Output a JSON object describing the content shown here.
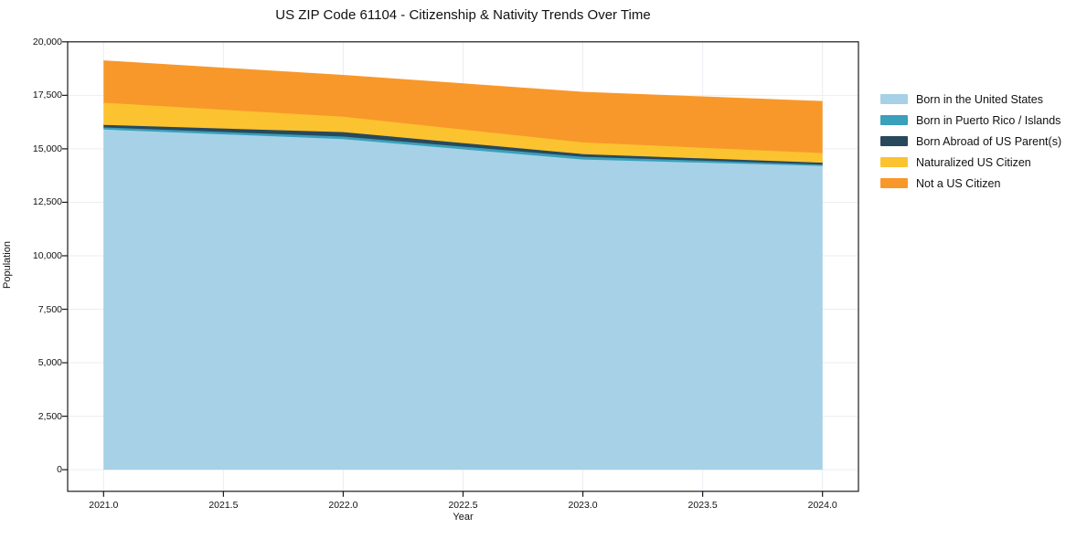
{
  "chart_data": {
    "type": "area",
    "stacked": true,
    "title": "US ZIP Code 61104 - Citizenship & Nativity Trends Over Time",
    "xlabel": "Year",
    "ylabel": "Population",
    "x": [
      2021,
      2022,
      2023,
      2024
    ],
    "series": [
      {
        "name": "Born in the United States",
        "color": "#a6d1e6",
        "values": [
          15900,
          15450,
          14500,
          14200
        ]
      },
      {
        "name": "Born in Puerto Rico / Islands",
        "color": "#3aa0bb",
        "values": [
          100,
          120,
          130,
          60
        ]
      },
      {
        "name": "Born Abroad of US Parent(s)",
        "color": "#28495c",
        "values": [
          120,
          210,
          120,
          90
        ]
      },
      {
        "name": "Naturalized US Citizen",
        "color": "#fcc330",
        "values": [
          1030,
          720,
          550,
          450
        ]
      },
      {
        "name": "Not a US Citizen",
        "color": "#f8982a",
        "values": [
          1950,
          1920,
          2330,
          2400
        ]
      }
    ],
    "stacked_totals": [
      19100,
      18420,
      17630,
      17200
    ],
    "xticks": {
      "values": [
        2021.0,
        2021.5,
        2022.0,
        2022.5,
        2023.0,
        2023.5,
        2024.0
      ],
      "labels": [
        "2021.0",
        "2021.5",
        "2022.0",
        "2022.5",
        "2023.0",
        "2023.5",
        "2024.0"
      ]
    },
    "yticks": {
      "values": [
        0,
        2500,
        5000,
        7500,
        10000,
        12500,
        15000,
        17500,
        20000
      ],
      "labels": [
        "0",
        "2,500",
        "5,000",
        "7,500",
        "10,000",
        "12,500",
        "15,000",
        "17,500",
        "20,000"
      ]
    },
    "xlim": [
      2020.85,
      2024.15
    ],
    "ylim": [
      -1010,
      20000
    ],
    "grid": true,
    "grid_color": "#e9eef2",
    "frame_color": "#1a1a1a",
    "legend_position": "right-outside"
  }
}
